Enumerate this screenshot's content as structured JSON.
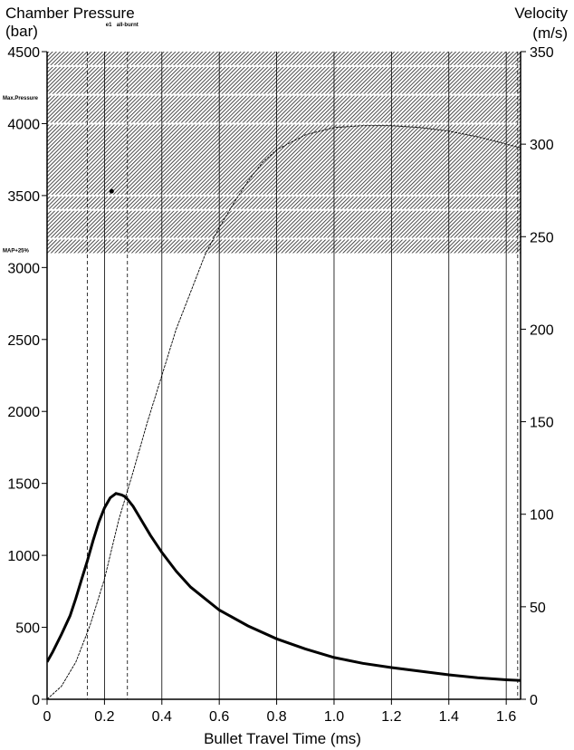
{
  "chart_data": {
    "type": "line",
    "left_axis": {
      "title_line1": "Chamber Pressure",
      "title_line2": "(bar)",
      "range": [
        0,
        4500
      ],
      "ticks": [
        "0",
        "500",
        "1000",
        "1500",
        "2000",
        "2500",
        "3000",
        "3500",
        "4000",
        "4500"
      ]
    },
    "right_axis": {
      "title_line1": "Velocity",
      "title_line2": "(m/s)",
      "range": [
        0,
        350
      ],
      "ticks": [
        "0",
        "50",
        "100",
        "150",
        "200",
        "250",
        "300",
        "350"
      ]
    },
    "x_axis": {
      "title": "Bullet Travel Time (ms)",
      "range": [
        0,
        1.65
      ],
      "ticks": [
        "0",
        "0.2",
        "0.4",
        "0.6",
        "0.8",
        "1.0",
        "1.2",
        "1.4",
        "1.6"
      ]
    },
    "hatched_band": {
      "from": 3100,
      "to": 4500
    },
    "white_lines_pressure": [
      3200,
      3400,
      3500,
      4000,
      4200,
      4400
    ],
    "band_labels": [
      {
        "text": "Max.Pressure",
        "pressure": 4180
      },
      {
        "text": "MAP+25%",
        "pressure": 3120
      }
    ],
    "upper_markers": [
      {
        "text": "e1",
        "time": 0.215
      },
      {
        "text": "all-burnt",
        "time": 0.28
      }
    ],
    "vertical_lines_ms": [
      0.14,
      0.2,
      0.28,
      0.4,
      0.6,
      0.8,
      1.0,
      1.2,
      1.4,
      1.6
    ],
    "dashed_vertical_lines_ms": [
      0.14,
      0.28,
      1.64
    ],
    "series": [
      {
        "name": "pressure",
        "axis": "left",
        "style": "thick",
        "x": [
          0,
          0.02,
          0.05,
          0.08,
          0.1,
          0.12,
          0.14,
          0.16,
          0.18,
          0.2,
          0.22,
          0.24,
          0.26,
          0.27,
          0.28,
          0.3,
          0.33,
          0.36,
          0.4,
          0.45,
          0.5,
          0.55,
          0.6,
          0.7,
          0.8,
          0.9,
          1.0,
          1.1,
          1.2,
          1.3,
          1.4,
          1.5,
          1.6,
          1.65
        ],
        "y": [
          260,
          330,
          450,
          580,
          700,
          830,
          960,
          1100,
          1230,
          1330,
          1400,
          1430,
          1420,
          1410,
          1390,
          1340,
          1240,
          1140,
          1020,
          890,
          780,
          700,
          620,
          510,
          420,
          350,
          290,
          250,
          220,
          195,
          170,
          150,
          135,
          130
        ]
      },
      {
        "name": "velocity",
        "axis": "right",
        "style": "thin",
        "x": [
          0,
          0.05,
          0.1,
          0.15,
          0.2,
          0.25,
          0.3,
          0.35,
          0.4,
          0.45,
          0.5,
          0.55,
          0.6,
          0.65,
          0.7,
          0.75,
          0.8,
          0.9,
          1.0,
          1.1,
          1.2,
          1.3,
          1.4,
          1.5,
          1.6,
          1.65
        ],
        "y": [
          0,
          7,
          20,
          40,
          65,
          97,
          123,
          150,
          175,
          200,
          220,
          240,
          255,
          268,
          280,
          290,
          297,
          305,
          309,
          310,
          310,
          309,
          307,
          304,
          300,
          298
        ]
      }
    ],
    "colors": {
      "line": "#000000",
      "hatch": "#333333",
      "white_line": "#ffffff",
      "grid": "#000000"
    }
  }
}
